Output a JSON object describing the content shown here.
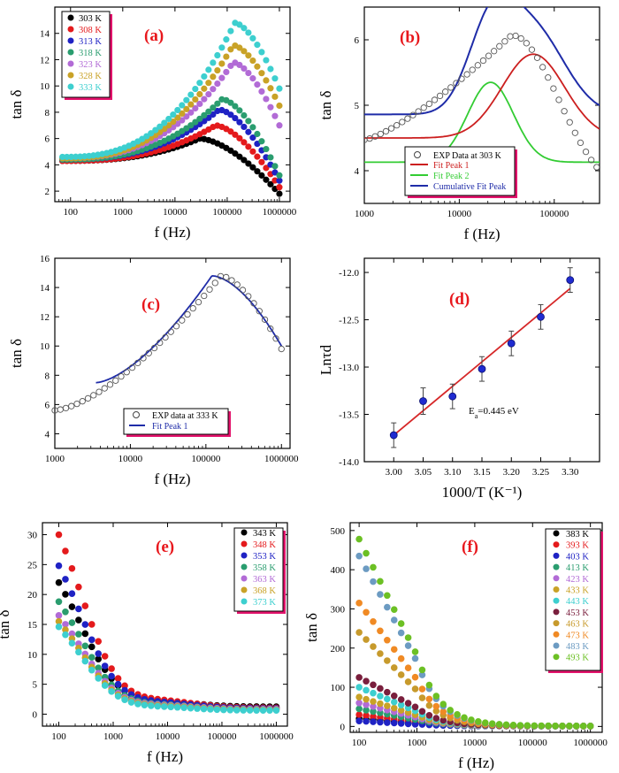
{
  "colors": {
    "axis": "#000000",
    "panel_label": "#e8171c",
    "legend_shadow": "#e3136c",
    "fit_red": "#cc1f1f",
    "fit_green": "#33cc33",
    "fit_blue": "#1f2ca8",
    "series": [
      "#000000",
      "#e41a1c",
      "#1f22c4",
      "#2a9d6f",
      "#b26bd6",
      "#c9a227",
      "#3dcfcf",
      "#7a1f3d",
      "#c79a2c",
      "#f08a24",
      "#6c9bc2",
      "#6cc024"
    ]
  },
  "chart_data": [
    {
      "id": "a",
      "type": "scatter",
      "label": "(a)",
      "xlabel": "f (Hz)",
      "ylabel": "tan δ",
      "xscale": "log",
      "xlim": [
        50,
        1600000
      ],
      "ylim": [
        1.2,
        16
      ],
      "xticks": [
        100,
        1000,
        10000,
        100000,
        1000000
      ],
      "xticklabels": [
        "100",
        "1000",
        "10000",
        "100000",
        "1000000"
      ],
      "yticks": [
        2,
        4,
        6,
        8,
        10,
        12,
        14
      ],
      "yticklabels": [
        "2",
        "4",
        "6",
        "8",
        "10",
        "12",
        "14"
      ],
      "legend_position": "top-left",
      "series": [
        {
          "name": "303 K",
          "base": 4.3,
          "peak": 6.0,
          "fpeak": 30000,
          "end": 1.8
        },
        {
          "name": "308 K",
          "base": 4.3,
          "peak": 7.0,
          "fpeak": 60000,
          "end": 2.3
        },
        {
          "name": "313 K",
          "base": 4.4,
          "peak": 8.2,
          "fpeak": 70000,
          "end": 2.8
        },
        {
          "name": "318 K",
          "base": 4.4,
          "peak": 9.0,
          "fpeak": 80000,
          "end": 3.2
        },
        {
          "name": "323 K",
          "base": 4.5,
          "peak": 11.8,
          "fpeak": 130000,
          "end": 7.0
        },
        {
          "name": "328 K",
          "base": 4.5,
          "peak": 13.1,
          "fpeak": 130000,
          "end": 8.5
        },
        {
          "name": "333 K",
          "base": 4.6,
          "peak": 14.8,
          "fpeak": 140000,
          "end": 9.8
        }
      ]
    },
    {
      "id": "b",
      "type": "line",
      "label": "(b)",
      "xlabel": "f (Hz)",
      "ylabel": "tan δ",
      "xscale": "log",
      "xlim": [
        1000,
        300000
      ],
      "ylim": [
        3.5,
        6.5
      ],
      "xticks": [
        1000,
        10000,
        100000
      ],
      "xticklabels": [
        "1000",
        "10000",
        "100000"
      ],
      "yticks": [
        4,
        5,
        6
      ],
      "yticklabels": [
        "4",
        "5",
        "6"
      ],
      "legend_position": "bottom-left",
      "series": [
        {
          "name": "EXP Data at 303 K",
          "kind": "open-circle"
        },
        {
          "name": "Fit Peak 1",
          "kind": "line",
          "color_key": "fit_red"
        },
        {
          "name": "Fit Peak 2",
          "kind": "line",
          "color_key": "fit_green"
        },
        {
          "name": "Cumulative Fit Peak",
          "kind": "line",
          "color_key": "fit_blue"
        }
      ]
    },
    {
      "id": "c",
      "type": "line",
      "label": "(c)",
      "xlabel": "f (Hz)",
      "ylabel": "tan δ",
      "xscale": "log",
      "xlim": [
        1000,
        1300000
      ],
      "ylim": [
        3,
        16
      ],
      "xticks": [
        1000,
        10000,
        100000,
        1000000
      ],
      "xticklabels": [
        "1000",
        "10000",
        "100000",
        "1000000"
      ],
      "yticks": [
        4,
        6,
        8,
        10,
        12,
        14,
        16
      ],
      "yticklabels": [
        "4",
        "6",
        "8",
        "10",
        "12",
        "14",
        "16"
      ],
      "legend_position": "bottom-center",
      "series": [
        {
          "name": "EXP data at 333 K",
          "kind": "open-circle"
        },
        {
          "name": "Fit Peak 1",
          "kind": "line",
          "color_key": "fit_blue"
        }
      ]
    },
    {
      "id": "d",
      "type": "scatter",
      "label": "(d)",
      "xlabel": "1000/T (K⁻¹)",
      "ylabel": "Lnτd",
      "xlim": [
        2.95,
        3.35
      ],
      "ylim": [
        -14.0,
        -11.85
      ],
      "xticks": [
        3.0,
        3.05,
        3.1,
        3.15,
        3.2,
        3.25,
        3.3
      ],
      "xticklabels": [
        "3.00",
        "3.05",
        "3.10",
        "3.15",
        "3.20",
        "3.25",
        "3.30"
      ],
      "yticks": [
        -14.0,
        -13.5,
        -13.0,
        -12.5,
        -12.0
      ],
      "yticklabels": [
        "-14.0",
        "-13.5",
        "-13.0",
        "-12.5",
        "-12.0"
      ],
      "annotation": "Ea=0.445 eV",
      "x": [
        3.0,
        3.05,
        3.1,
        3.15,
        3.2,
        3.25,
        3.3
      ],
      "y": [
        -13.72,
        -13.36,
        -13.31,
        -13.02,
        -12.75,
        -12.47,
        -12.08
      ],
      "err": [
        0.13,
        0.14,
        0.13,
        0.13,
        0.13,
        0.13,
        0.13
      ],
      "fit": {
        "x": [
          3.0,
          3.3
        ],
        "y": [
          -13.72,
          -12.17
        ]
      }
    },
    {
      "id": "e",
      "type": "scatter",
      "label": "(e)",
      "xlabel": "f (Hz)",
      "ylabel": "tan δ",
      "xscale": "log",
      "xlim": [
        50,
        1600000
      ],
      "ylim": [
        -2,
        32
      ],
      "xticks": [
        100,
        1000,
        10000,
        100000,
        1000000
      ],
      "xticklabels": [
        "100",
        "1000",
        "10000",
        "100000",
        "1000000"
      ],
      "yticks": [
        0,
        5,
        10,
        15,
        20,
        25,
        30
      ],
      "yticklabels": [
        "0",
        "5",
        "10",
        "15",
        "20",
        "25",
        "30"
      ],
      "legend_position": "top-right",
      "series": [
        {
          "name": "343 K",
          "start": 22.0,
          "end": 1.2
        },
        {
          "name": "348 K",
          "start": 30.0,
          "end": 1.0
        },
        {
          "name": "353 K",
          "start": 24.8,
          "end": 0.9
        },
        {
          "name": "358 K",
          "start": 18.8,
          "end": 0.8
        },
        {
          "name": "363 K",
          "start": 16.5,
          "end": 0.8
        },
        {
          "name": "368 K",
          "start": 15.5,
          "end": 0.7
        },
        {
          "name": "373 K",
          "start": 14.6,
          "end": 0.6
        }
      ]
    },
    {
      "id": "f",
      "type": "scatter",
      "label": "(f)",
      "xlabel": "f (Hz)",
      "ylabel": "tan δ",
      "xscale": "log",
      "xlim": [
        70,
        1600000
      ],
      "ylim": [
        -15,
        520
      ],
      "xticks": [
        100,
        1000,
        10000,
        100000,
        1000000
      ],
      "xticklabels": [
        "100",
        "1000",
        "10000",
        "100000",
        "1000000"
      ],
      "yticks": [
        0,
        100,
        200,
        300,
        400,
        500
      ],
      "yticklabels": [
        "0",
        "100",
        "200",
        "300",
        "400",
        "500"
      ],
      "legend_position": "top-right",
      "series": [
        {
          "name": "383 K",
          "start": 20
        },
        {
          "name": "393 K",
          "start": 30
        },
        {
          "name": "403 K",
          "start": 14
        },
        {
          "name": "413 K",
          "start": 45
        },
        {
          "name": "423 K",
          "start": 60
        },
        {
          "name": "433 K",
          "start": 75
        },
        {
          "name": "443 K",
          "start": 100
        },
        {
          "name": "453 K",
          "start": 125
        },
        {
          "name": "463 K",
          "start": 240
        },
        {
          "name": "473 K",
          "start": 315
        },
        {
          "name": "483 K",
          "start": 435
        },
        {
          "name": "493 K",
          "start": 478
        }
      ]
    }
  ]
}
